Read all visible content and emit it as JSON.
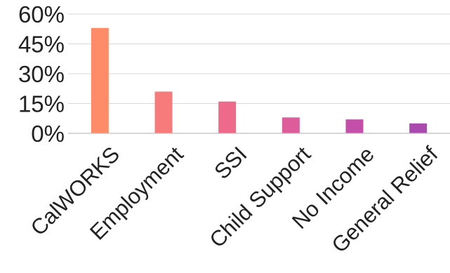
{
  "chart_data": {
    "type": "bar",
    "title": "",
    "xlabel": "",
    "ylabel": "",
    "categories": [
      "CalWORKS",
      "Employment",
      "SSI",
      "Child Support",
      "No Income",
      "General Relief"
    ],
    "values": [
      53,
      21,
      16,
      8,
      7,
      5
    ],
    "value_unit": "%",
    "ylim": [
      0,
      60
    ],
    "yticks": [
      0,
      15,
      30,
      45,
      60
    ],
    "ytick_labels": [
      "0%",
      "15%",
      "30%",
      "45%",
      "60%"
    ],
    "grid": true,
    "legend": "none",
    "colors": [
      "#ff8c69",
      "#f77b7b",
      "#ee6a8a",
      "#dd5c9a",
      "#c44fa8",
      "#a94aae"
    ]
  }
}
